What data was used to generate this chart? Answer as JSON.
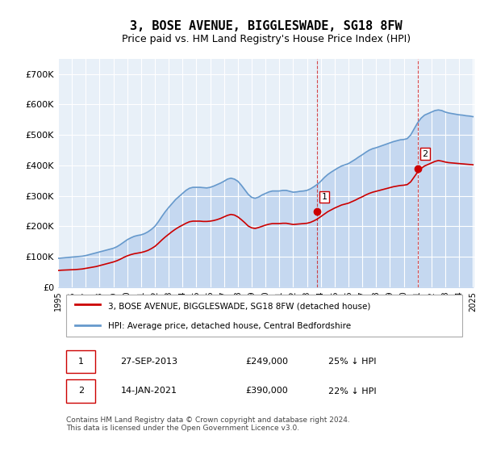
{
  "title": "3, BOSE AVENUE, BIGGLESWADE, SG18 8FW",
  "subtitle": "Price paid vs. HM Land Registry's House Price Index (HPI)",
  "title_fontsize": 11,
  "subtitle_fontsize": 9,
  "bg_color": "#ffffff",
  "plot_bg_color": "#e8f0f8",
  "grid_color": "#ffffff",
  "red_color": "#cc0000",
  "blue_color": "#6699cc",
  "blue_fill_color": "#c5d8f0",
  "ylim": [
    0,
    750000
  ],
  "yticks": [
    0,
    100000,
    200000,
    300000,
    400000,
    500000,
    600000,
    700000
  ],
  "ytick_labels": [
    "£0",
    "£100K",
    "£200K",
    "£300K",
    "£400K",
    "£500K",
    "£600K",
    "£700K"
  ],
  "x_start_year": 1995,
  "x_end_year": 2025,
  "sale1_year": 2013.74,
  "sale1_value": 249000,
  "sale1_label": "1",
  "sale2_year": 2021.04,
  "sale2_value": 390000,
  "sale2_label": "2",
  "legend_line1": "3, BOSE AVENUE, BIGGLESWADE, SG18 8FW (detached house)",
  "legend_line2": "HPI: Average price, detached house, Central Bedfordshire",
  "table_row1": [
    "1",
    "27-SEP-2013",
    "£249,000",
    "25% ↓ HPI"
  ],
  "table_row2": [
    "2",
    "14-JAN-2021",
    "£390,000",
    "22% ↓ HPI"
  ],
  "footer": "Contains HM Land Registry data © Crown copyright and database right 2024.\nThis data is licensed under the Open Government Licence v3.0.",
  "hpi_data": {
    "years": [
      1995.0,
      1995.25,
      1995.5,
      1995.75,
      1996.0,
      1996.25,
      1996.5,
      1996.75,
      1997.0,
      1997.25,
      1997.5,
      1997.75,
      1998.0,
      1998.25,
      1998.5,
      1998.75,
      1999.0,
      1999.25,
      1999.5,
      1999.75,
      2000.0,
      2000.25,
      2000.5,
      2000.75,
      2001.0,
      2001.25,
      2001.5,
      2001.75,
      2002.0,
      2002.25,
      2002.5,
      2002.75,
      2003.0,
      2003.25,
      2003.5,
      2003.75,
      2004.0,
      2004.25,
      2004.5,
      2004.75,
      2005.0,
      2005.25,
      2005.5,
      2005.75,
      2006.0,
      2006.25,
      2006.5,
      2006.75,
      2007.0,
      2007.25,
      2007.5,
      2007.75,
      2008.0,
      2008.25,
      2008.5,
      2008.75,
      2009.0,
      2009.25,
      2009.5,
      2009.75,
      2010.0,
      2010.25,
      2010.5,
      2010.75,
      2011.0,
      2011.25,
      2011.5,
      2011.75,
      2012.0,
      2012.25,
      2012.5,
      2012.75,
      2013.0,
      2013.25,
      2013.5,
      2013.75,
      2014.0,
      2014.25,
      2014.5,
      2014.75,
      2015.0,
      2015.25,
      2015.5,
      2015.75,
      2016.0,
      2016.25,
      2016.5,
      2016.75,
      2017.0,
      2017.25,
      2017.5,
      2017.75,
      2018.0,
      2018.25,
      2018.5,
      2018.75,
      2019.0,
      2019.25,
      2019.5,
      2019.75,
      2020.0,
      2020.25,
      2020.5,
      2020.75,
      2021.0,
      2021.25,
      2021.5,
      2021.75,
      2022.0,
      2022.25,
      2022.5,
      2022.75,
      2023.0,
      2023.25,
      2023.5,
      2023.75,
      2024.0,
      2024.25,
      2024.5,
      2024.75,
      2025.0
    ],
    "values": [
      95000,
      96000,
      97000,
      98000,
      99000,
      100000,
      101000,
      102000,
      104000,
      107000,
      110000,
      113000,
      116000,
      119000,
      122000,
      125000,
      128000,
      133000,
      140000,
      148000,
      156000,
      162000,
      167000,
      170000,
      172000,
      176000,
      182000,
      190000,
      200000,
      215000,
      232000,
      248000,
      262000,
      275000,
      288000,
      298000,
      308000,
      318000,
      325000,
      328000,
      328000,
      328000,
      327000,
      326000,
      328000,
      332000,
      337000,
      342000,
      348000,
      355000,
      358000,
      355000,
      348000,
      335000,
      320000,
      305000,
      295000,
      292000,
      296000,
      303000,
      308000,
      313000,
      316000,
      316000,
      316000,
      318000,
      318000,
      315000,
      312000,
      313000,
      315000,
      316000,
      318000,
      323000,
      330000,
      338000,
      348000,
      360000,
      370000,
      378000,
      385000,
      392000,
      398000,
      402000,
      406000,
      413000,
      420000,
      428000,
      435000,
      443000,
      450000,
      455000,
      458000,
      462000,
      466000,
      470000,
      474000,
      478000,
      481000,
      484000,
      485000,
      488000,
      500000,
      520000,
      540000,
      555000,
      565000,
      570000,
      575000,
      580000,
      582000,
      580000,
      575000,
      572000,
      570000,
      568000,
      566000,
      565000,
      563000,
      562000,
      560000
    ]
  },
  "red_data": {
    "years": [
      1995.0,
      1995.25,
      1995.5,
      1995.75,
      1996.0,
      1996.25,
      1996.5,
      1996.75,
      1997.0,
      1997.25,
      1997.5,
      1997.75,
      1998.0,
      1998.25,
      1998.5,
      1998.75,
      1999.0,
      1999.25,
      1999.5,
      1999.75,
      2000.0,
      2000.25,
      2000.5,
      2000.75,
      2001.0,
      2001.25,
      2001.5,
      2001.75,
      2002.0,
      2002.25,
      2002.5,
      2002.75,
      2003.0,
      2003.25,
      2003.5,
      2003.75,
      2004.0,
      2004.25,
      2004.5,
      2004.75,
      2005.0,
      2005.25,
      2005.5,
      2005.75,
      2006.0,
      2006.25,
      2006.5,
      2006.75,
      2007.0,
      2007.25,
      2007.5,
      2007.75,
      2008.0,
      2008.25,
      2008.5,
      2008.75,
      2009.0,
      2009.25,
      2009.5,
      2009.75,
      2010.0,
      2010.25,
      2010.5,
      2010.75,
      2011.0,
      2011.25,
      2011.5,
      2011.75,
      2012.0,
      2012.25,
      2012.5,
      2012.75,
      2013.0,
      2013.25,
      2013.5,
      2013.75,
      2014.0,
      2014.25,
      2014.5,
      2014.75,
      2015.0,
      2015.25,
      2015.5,
      2015.75,
      2016.0,
      2016.25,
      2016.5,
      2016.75,
      2017.0,
      2017.25,
      2017.5,
      2017.75,
      2018.0,
      2018.25,
      2018.5,
      2018.75,
      2019.0,
      2019.25,
      2019.5,
      2019.75,
      2020.0,
      2020.25,
      2020.5,
      2020.75,
      2021.0,
      2021.25,
      2021.5,
      2021.75,
      2022.0,
      2022.25,
      2022.5,
      2022.75,
      2023.0,
      2023.25,
      2023.5,
      2023.75,
      2024.0,
      2024.25,
      2024.5,
      2024.75,
      2025.0
    ],
    "values": [
      55000,
      56000,
      56500,
      57000,
      57500,
      58000,
      59000,
      60000,
      62000,
      64000,
      66000,
      68000,
      71000,
      74000,
      77000,
      80000,
      83000,
      87000,
      92000,
      98000,
      103000,
      107000,
      110000,
      112000,
      114000,
      117000,
      121000,
      127000,
      134000,
      144000,
      155000,
      165000,
      174000,
      183000,
      191000,
      198000,
      204000,
      210000,
      215000,
      217000,
      217000,
      217000,
      216000,
      216000,
      217000,
      219000,
      222000,
      226000,
      231000,
      236000,
      239000,
      237000,
      231000,
      222000,
      212000,
      201000,
      195000,
      193000,
      196000,
      200000,
      204000,
      207000,
      209000,
      209000,
      209000,
      210000,
      210000,
      208000,
      206000,
      207000,
      208000,
      209000,
      210000,
      213000,
      218000,
      224000,
      232000,
      240000,
      248000,
      254000,
      260000,
      265000,
      270000,
      273000,
      276000,
      281000,
      286000,
      292000,
      297000,
      303000,
      308000,
      312000,
      315000,
      318000,
      321000,
      324000,
      327000,
      330000,
      332000,
      334000,
      335000,
      337000,
      346000,
      362000,
      378000,
      390000,
      398000,
      403000,
      408000,
      413000,
      416000,
      414000,
      411000,
      409000,
      408000,
      407000,
      406000,
      405000,
      404000,
      403000,
      402000
    ]
  }
}
